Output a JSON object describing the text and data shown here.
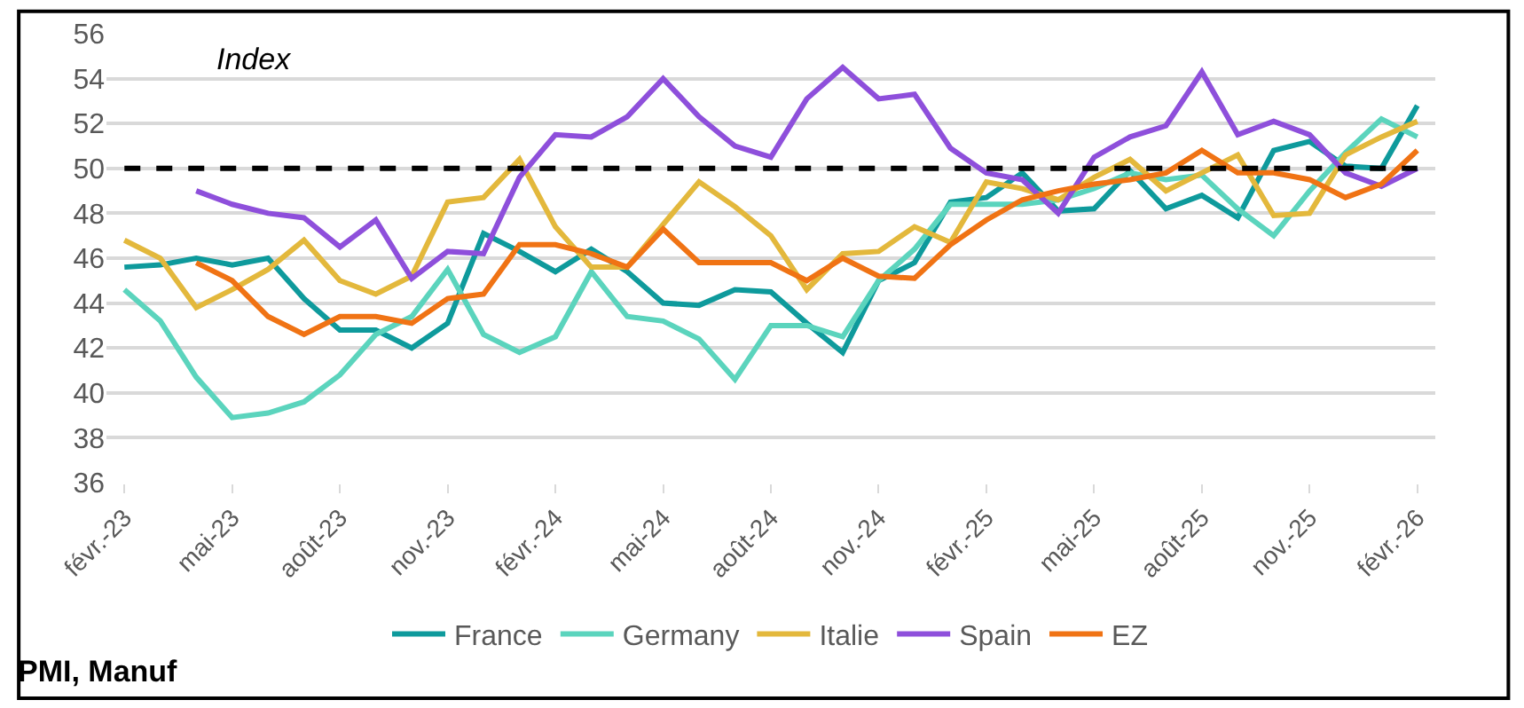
{
  "chart_data": {
    "type": "line",
    "categories": [
      "févr.-23",
      null,
      null,
      "mai-23",
      null,
      null,
      "août-23",
      null,
      null,
      "nov.-23",
      null,
      null,
      "févr.-24",
      null,
      null,
      "mai-24",
      null,
      null,
      "août-24",
      null,
      null,
      "nov.-24",
      null,
      null,
      "févr.-25",
      null,
      null,
      "mai-25",
      null,
      null,
      "août-25",
      null,
      null,
      "nov.-25",
      null,
      null,
      "févr.-26"
    ],
    "series": [
      {
        "name": "France",
        "color": "#0e9a9c",
        "values": [
          45.6,
          45.7,
          46.0,
          45.7,
          46.0,
          44.2,
          42.8,
          42.8,
          42.0,
          43.1,
          47.1,
          46.3,
          45.4,
          46.4,
          45.4,
          44.0,
          43.9,
          44.6,
          44.5,
          43.1,
          41.8,
          45.0,
          45.8,
          48.5,
          48.7,
          49.8,
          48.1,
          48.2,
          49.9,
          48.2,
          48.8,
          47.8,
          50.8,
          51.2,
          50.1,
          50.0,
          52.8
        ]
      },
      {
        "name": "Germany",
        "color": "#5bd4bd",
        "values": [
          44.6,
          43.2,
          40.7,
          38.9,
          39.1,
          39.6,
          40.8,
          42.6,
          43.4,
          45.5,
          42.6,
          41.8,
          42.5,
          45.4,
          43.4,
          43.2,
          42.4,
          40.6,
          43.0,
          43.0,
          42.5,
          45.0,
          46.4,
          48.4,
          48.4,
          48.4,
          48.6,
          49.1,
          49.8,
          49.5,
          49.7,
          48.2,
          47.0,
          49.0,
          50.7,
          52.2,
          51.4
        ]
      },
      {
        "name": "Italie",
        "color": "#e3b83c",
        "values": [
          46.8,
          46.0,
          43.8,
          44.6,
          45.5,
          46.8,
          45.0,
          44.4,
          45.2,
          48.5,
          48.7,
          50.4,
          47.4,
          45.6,
          45.6,
          47.5,
          49.4,
          48.3,
          47.0,
          44.6,
          46.2,
          46.3,
          47.4,
          46.7,
          49.4,
          49.1,
          48.6,
          49.6,
          50.4,
          49.0,
          49.8,
          50.6,
          47.9,
          48.0,
          50.6,
          51.4,
          52.1
        ]
      },
      {
        "name": "Spain",
        "color": "#8e4fdb",
        "values": [
          null,
          null,
          49.0,
          48.4,
          48.0,
          47.8,
          46.5,
          47.7,
          45.1,
          46.3,
          46.2,
          49.6,
          51.5,
          51.4,
          52.3,
          54.0,
          52.3,
          51.0,
          50.5,
          53.1,
          54.5,
          53.1,
          53.3,
          50.9,
          49.8,
          49.5,
          48.0,
          50.5,
          51.4,
          51.9,
          54.3,
          51.5,
          52.1,
          51.5,
          49.8,
          49.2,
          50.0
        ]
      },
      {
        "name": "EZ",
        "color": "#f07314",
        "values": [
          null,
          null,
          45.8,
          45.0,
          43.4,
          42.6,
          43.4,
          43.4,
          43.1,
          44.2,
          44.4,
          46.6,
          46.6,
          46.2,
          45.6,
          47.3,
          45.8,
          45.8,
          45.8,
          45.0,
          46.0,
          45.2,
          45.1,
          46.6,
          47.7,
          48.6,
          49.0,
          49.3,
          49.5,
          49.8,
          50.8,
          49.8,
          49.8,
          49.5,
          48.7,
          49.3,
          50.8
        ]
      }
    ],
    "ylim": [
      36,
      56
    ],
    "yticks": [
      36,
      38,
      40,
      42,
      44,
      46,
      48,
      50,
      52,
      54,
      56
    ],
    "ref_lines": [
      {
        "axis": "y",
        "value": 50,
        "color": "#000000",
        "line_style": "dashed"
      }
    ],
    "annotations": [
      "Index",
      "PMI, Manuf"
    ],
    "grid": "y",
    "legend": "bottom",
    "line_style": "solid",
    "marker": "none"
  }
}
